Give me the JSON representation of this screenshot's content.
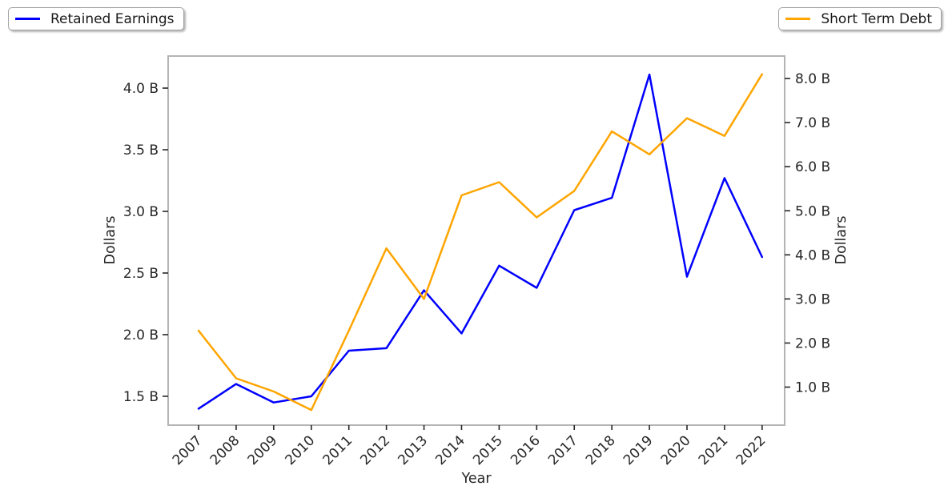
{
  "legends": [
    {
      "label": "Retained Earnings",
      "color": "#0000ff"
    },
    {
      "label": "Short Term Debt",
      "color": "#ffa500"
    }
  ],
  "chart_data": {
    "type": "line",
    "title": "",
    "xlabel": "Year",
    "x": [
      2007,
      2008,
      2009,
      2010,
      2011,
      2012,
      2013,
      2014,
      2015,
      2016,
      2017,
      2018,
      2019,
      2020,
      2021,
      2022
    ],
    "xlim": [
      2006.19,
      2022.6
    ],
    "grid": false,
    "series": [
      {
        "name": "Retained Earnings",
        "axis": "left",
        "color": "#0000ff",
        "unit": "B",
        "values": [
          1.4,
          1.6,
          1.45,
          1.5,
          1.87,
          1.89,
          2.36,
          2.01,
          2.56,
          2.38,
          3.01,
          3.11,
          4.11,
          2.47,
          3.27,
          2.63
        ]
      },
      {
        "name": "Short Term Debt",
        "axis": "right",
        "color": "#ffa500",
        "unit": "B",
        "values": [
          2.28,
          1.2,
          0.9,
          0.48,
          2.28,
          4.15,
          3.0,
          5.35,
          5.65,
          4.85,
          5.45,
          6.8,
          6.28,
          7.1,
          6.7,
          8.1
        ]
      }
    ],
    "axes": {
      "left": {
        "label": "Dollars",
        "ticks": [
          1.5,
          2.0,
          2.5,
          3.0,
          3.5,
          4.0
        ],
        "tick_suffix": " B",
        "ylim": [
          1.266,
          4.26
        ]
      },
      "right": {
        "label": "Dollars",
        "ticks": [
          1.0,
          2.0,
          3.0,
          4.0,
          5.0,
          6.0,
          7.0,
          8.0
        ],
        "tick_suffix": " B",
        "ylim": [
          0.137,
          8.51
        ]
      }
    },
    "legend_position": "outside-top-left and outside-top-right"
  }
}
